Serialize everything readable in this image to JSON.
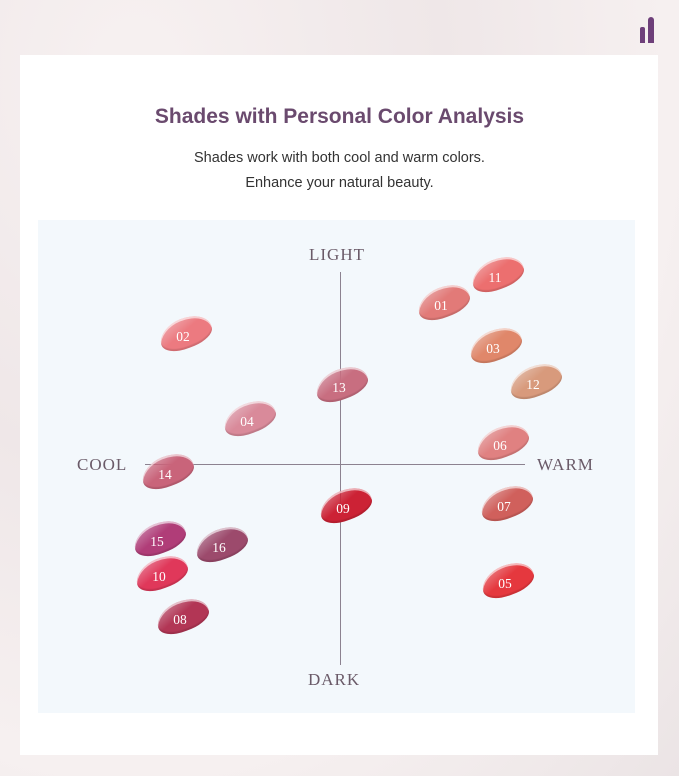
{
  "header": {
    "title": "Shades with Personal Color Analysis",
    "subtitle_lines": [
      "Shades work with both cool and warm colors.",
      "Enhance your natural beauty."
    ]
  },
  "chart_data": {
    "type": "scatter",
    "axes": {
      "top": "LIGHT",
      "bottom": "DARK",
      "left": "COOL",
      "right": "WARM"
    },
    "shades": [
      {
        "id": "01",
        "color": "#e27a78"
      },
      {
        "id": "02",
        "color": "#ec7a80"
      },
      {
        "id": "03",
        "color": "#e0876a"
      },
      {
        "id": "04",
        "color": "#d98a9a"
      },
      {
        "id": "05",
        "color": "#e5383e"
      },
      {
        "id": "06",
        "color": "#e08181"
      },
      {
        "id": "07",
        "color": "#d0605c"
      },
      {
        "id": "08",
        "color": "#b23655"
      },
      {
        "id": "09",
        "color": "#cc2235"
      },
      {
        "id": "10",
        "color": "#e0385a"
      },
      {
        "id": "11",
        "color": "#ec6f6f"
      },
      {
        "id": "12",
        "color": "#d89a7c"
      },
      {
        "id": "13",
        "color": "#c86e80"
      },
      {
        "id": "14",
        "color": "#c9647a"
      },
      {
        "id": "15",
        "color": "#b03d78"
      },
      {
        "id": "16",
        "color": "#9c4a6c"
      }
    ]
  },
  "colors": {
    "title": "#6a4a6e",
    "panel": "#f3f8fc",
    "logo": "#6e3f7a"
  }
}
